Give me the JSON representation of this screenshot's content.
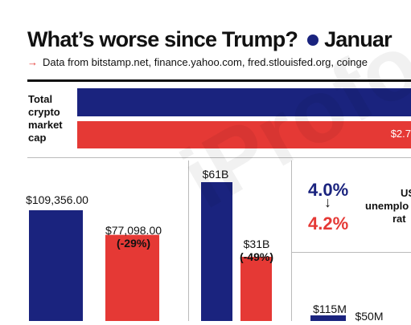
{
  "header": {
    "title": "What’s worse since Trump?",
    "legend_label": "Januar",
    "source": "Data from bitstamp.net, finance.yahoo.com, fred.stlouisfed.org, coinge"
  },
  "colors": {
    "before": "#1a237e",
    "after": "#e53935"
  },
  "chart_data": [
    {
      "type": "bar",
      "label": "Total crypto market cap",
      "series": [
        {
          "color": "before",
          "value": null
        },
        {
          "color": "after",
          "value": null,
          "label": "$2.7"
        }
      ]
    },
    {
      "type": "bar",
      "series": [
        {
          "color": "before",
          "value": 109356.0,
          "label": "$109,356.00"
        },
        {
          "color": "after",
          "value": 77098.0,
          "label": "$77,098.00",
          "change": "(-29%)"
        }
      ]
    },
    {
      "type": "bar",
      "series": [
        {
          "color": "before",
          "value": 61,
          "label": "$61B"
        },
        {
          "color": "after",
          "value": 31,
          "label": "$31B",
          "change": "(-49%)"
        }
      ]
    },
    {
      "type": "table",
      "label_lines": [
        "US",
        "unemplo",
        "rat"
      ],
      "before": "4.0%",
      "arrow": "↓",
      "after": "4.2%"
    },
    {
      "type": "bar",
      "series": [
        {
          "color": "before",
          "value": 115,
          "label": "$115M"
        },
        {
          "color": "after",
          "value": 50,
          "label": "$50M"
        }
      ]
    }
  ],
  "watermark": "iProfo"
}
